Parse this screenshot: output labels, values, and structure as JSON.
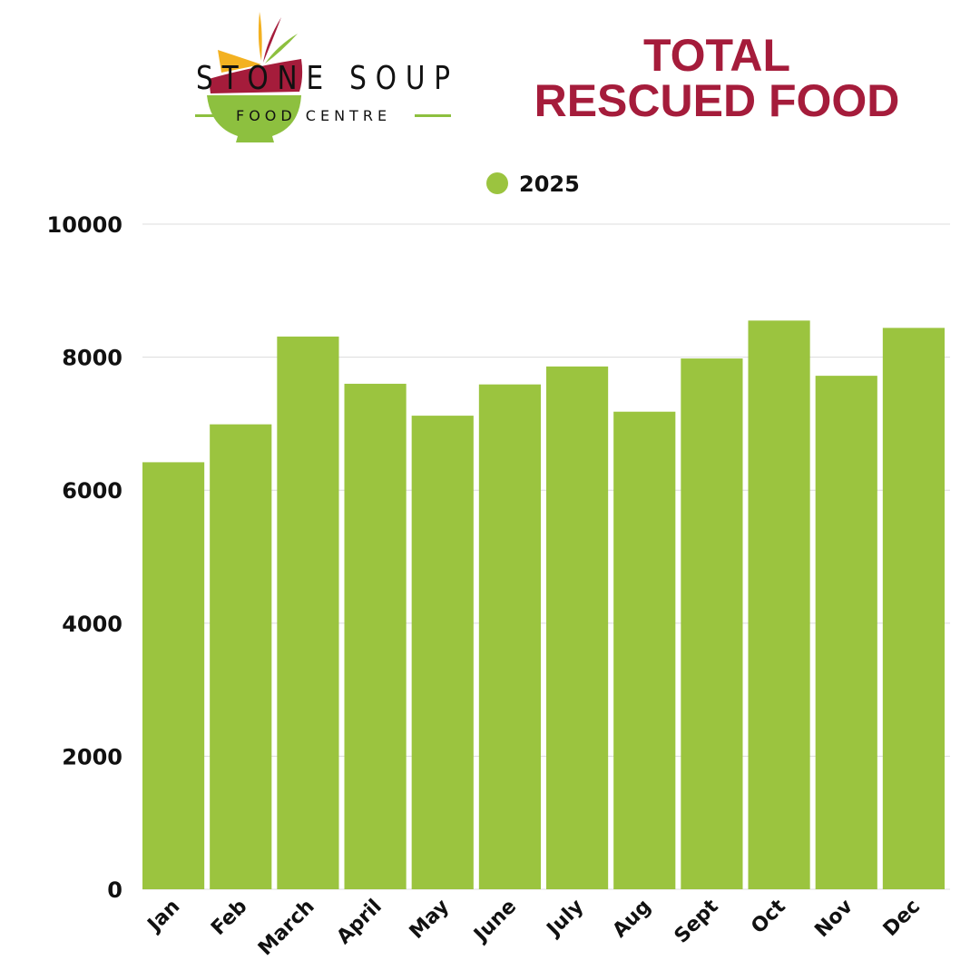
{
  "header": {
    "brand_name": "STONE SOUP",
    "brand_sub": "FOOD CENTRE",
    "title_line1": "TOTAL",
    "title_line2": "RESCUED FOOD"
  },
  "colors": {
    "bar": "#9bc43f",
    "title": "#a51c3b",
    "logo_red": "#a51c3b",
    "logo_yellow": "#f3b121",
    "logo_green": "#8dc03f"
  },
  "chart_data": {
    "type": "bar",
    "categories": [
      "Jan",
      "Feb",
      "March",
      "April",
      "May",
      "June",
      "July",
      "Aug",
      "Sept",
      "Oct",
      "Nov",
      "Dec"
    ],
    "series": [
      {
        "name": "2025",
        "values": [
          6420,
          6990,
          8310,
          7600,
          7120,
          7590,
          7860,
          7180,
          7980,
          8550,
          7720,
          8440
        ]
      }
    ],
    "ylim": [
      0,
      10000
    ],
    "yticks": [
      0,
      2000,
      4000,
      6000,
      8000,
      10000
    ],
    "grid": true,
    "legend": "top-center",
    "xlabel": "",
    "ylabel": "",
    "title": ""
  }
}
